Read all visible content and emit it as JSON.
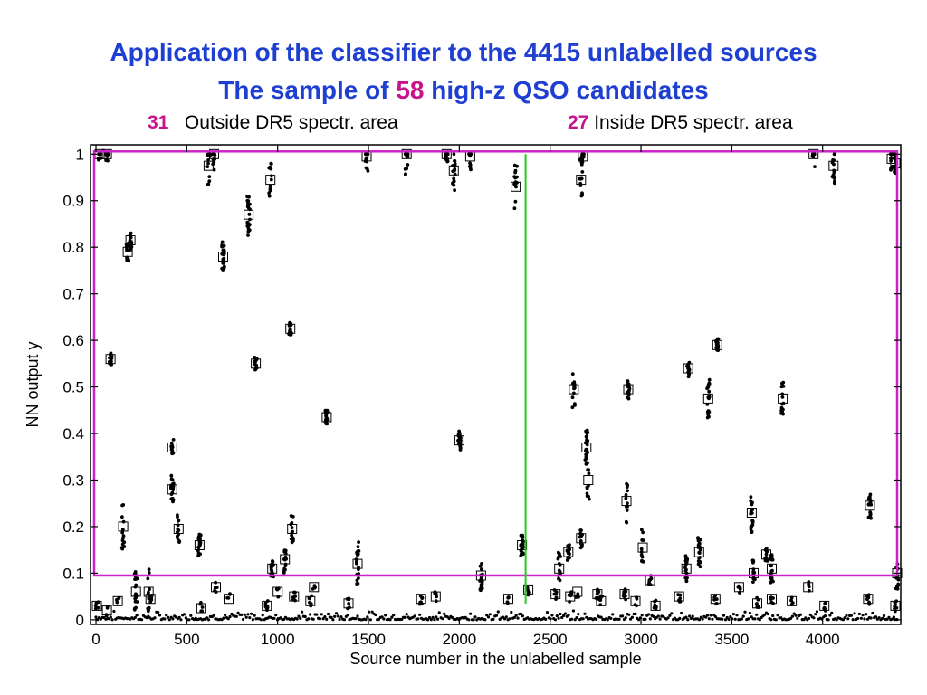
{
  "titles": {
    "line1": "Application of the classifier to the 4415 unlabelled sources",
    "line2_prefix": "The sample of",
    "line2_count": "58",
    "line2_suffix": "high-z QSO candidates"
  },
  "subtitles": {
    "left_count": "31",
    "left_text": "Outside DR5 spectr. area",
    "right_count": "27",
    "right_text": "Inside DR5 spectr. area"
  },
  "colors": {
    "title": "#1f3fd2",
    "highlight": "#c8148c",
    "selection_box": "#cc22cc",
    "divider": "#22cc22"
  },
  "chart_data": {
    "type": "scatter",
    "xlabel": "Source number in the unlabelled sample",
    "ylabel": "NN output   y",
    "xlim": [
      -30,
      4430
    ],
    "ylim": [
      -0.01,
      1.02
    ],
    "xticks": [
      0,
      500,
      1000,
      1500,
      2000,
      2500,
      3000,
      3500,
      4000
    ],
    "yticks": [
      0,
      0.1,
      0.2,
      0.3,
      0.4,
      0.5,
      0.6,
      0.7,
      0.8,
      0.9,
      1
    ],
    "selection_threshold": 0.095,
    "dr5_boundary_x": 2365,
    "grid": false,
    "legend": "none",
    "high_candidates": [
      {
        "x": 20,
        "y": 1.0
      },
      {
        "x": 60,
        "y": 1.0
      },
      {
        "x": 80,
        "y": 0.56
      },
      {
        "x": 150,
        "y": 0.2
      },
      {
        "x": 175,
        "y": 0.79
      },
      {
        "x": 190,
        "y": 0.815
      },
      {
        "x": 220,
        "y": 0.06
      },
      {
        "x": 290,
        "y": 0.06
      },
      {
        "x": 420,
        "y": 0.37
      },
      {
        "x": 420,
        "y": 0.28
      },
      {
        "x": 455,
        "y": 0.195
      },
      {
        "x": 570,
        "y": 0.16
      },
      {
        "x": 620,
        "y": 0.975
      },
      {
        "x": 650,
        "y": 1.0
      },
      {
        "x": 700,
        "y": 0.78
      },
      {
        "x": 840,
        "y": 0.87
      },
      {
        "x": 880,
        "y": 0.55
      },
      {
        "x": 960,
        "y": 0.945
      },
      {
        "x": 970,
        "y": 0.11
      },
      {
        "x": 1040,
        "y": 0.13
      },
      {
        "x": 1070,
        "y": 0.625
      },
      {
        "x": 1080,
        "y": 0.195
      },
      {
        "x": 1270,
        "y": 0.435
      },
      {
        "x": 1440,
        "y": 0.12
      },
      {
        "x": 1490,
        "y": 0.995
      },
      {
        "x": 1710,
        "y": 1.0
      },
      {
        "x": 1930,
        "y": 1.0
      },
      {
        "x": 1970,
        "y": 0.965
      },
      {
        "x": 2000,
        "y": 0.385
      },
      {
        "x": 2060,
        "y": 0.995
      },
      {
        "x": 2120,
        "y": 0.095
      },
      {
        "x": 2310,
        "y": 0.93
      },
      {
        "x": 2345,
        "y": 0.16
      },
      {
        "x": 2550,
        "y": 0.11
      },
      {
        "x": 2600,
        "y": 0.145
      },
      {
        "x": 2630,
        "y": 0.495
      },
      {
        "x": 2670,
        "y": 0.175
      },
      {
        "x": 2670,
        "y": 0.945
      },
      {
        "x": 2680,
        "y": 0.995
      },
      {
        "x": 2700,
        "y": 0.37
      },
      {
        "x": 2710,
        "y": 0.3
      },
      {
        "x": 2920,
        "y": 0.255
      },
      {
        "x": 2930,
        "y": 0.495
      },
      {
        "x": 3010,
        "y": 0.155
      },
      {
        "x": 3250,
        "y": 0.11
      },
      {
        "x": 3260,
        "y": 0.54
      },
      {
        "x": 3320,
        "y": 0.145
      },
      {
        "x": 3370,
        "y": 0.475
      },
      {
        "x": 3420,
        "y": 0.59
      },
      {
        "x": 3610,
        "y": 0.23
      },
      {
        "x": 3620,
        "y": 0.1
      },
      {
        "x": 3690,
        "y": 0.14
      },
      {
        "x": 3720,
        "y": 0.11
      },
      {
        "x": 3780,
        "y": 0.475
      },
      {
        "x": 3950,
        "y": 1.0
      },
      {
        "x": 4060,
        "y": 0.975
      },
      {
        "x": 4260,
        "y": 0.245
      },
      {
        "x": 4380,
        "y": 0.99
      },
      {
        "x": 4400,
        "y": 0.98
      },
      {
        "x": 4410,
        "y": 0.1
      }
    ],
    "low_sources": [
      {
        "x": 5,
        "y": 0.03
      },
      {
        "x": 60,
        "y": 0.02
      },
      {
        "x": 120,
        "y": 0.04
      },
      {
        "x": 300,
        "y": 0.045
      },
      {
        "x": 580,
        "y": 0.025
      },
      {
        "x": 660,
        "y": 0.07
      },
      {
        "x": 730,
        "y": 0.045
      },
      {
        "x": 940,
        "y": 0.03
      },
      {
        "x": 1000,
        "y": 0.06
      },
      {
        "x": 1090,
        "y": 0.05
      },
      {
        "x": 1180,
        "y": 0.04
      },
      {
        "x": 1200,
        "y": 0.07
      },
      {
        "x": 1390,
        "y": 0.035
      },
      {
        "x": 1790,
        "y": 0.045
      },
      {
        "x": 1870,
        "y": 0.05
      },
      {
        "x": 2270,
        "y": 0.045
      },
      {
        "x": 2380,
        "y": 0.065
      },
      {
        "x": 2530,
        "y": 0.055
      },
      {
        "x": 2610,
        "y": 0.05
      },
      {
        "x": 2650,
        "y": 0.06
      },
      {
        "x": 2760,
        "y": 0.055
      },
      {
        "x": 2780,
        "y": 0.04
      },
      {
        "x": 2910,
        "y": 0.055
      },
      {
        "x": 2970,
        "y": 0.04
      },
      {
        "x": 3050,
        "y": 0.085
      },
      {
        "x": 3080,
        "y": 0.03
      },
      {
        "x": 3210,
        "y": 0.05
      },
      {
        "x": 3410,
        "y": 0.045
      },
      {
        "x": 3540,
        "y": 0.07
      },
      {
        "x": 3640,
        "y": 0.035
      },
      {
        "x": 3720,
        "y": 0.045
      },
      {
        "x": 3830,
        "y": 0.04
      },
      {
        "x": 3920,
        "y": 0.07
      },
      {
        "x": 4010,
        "y": 0.03
      },
      {
        "x": 4250,
        "y": 0.045
      },
      {
        "x": 4400,
        "y": 0.03
      }
    ]
  }
}
